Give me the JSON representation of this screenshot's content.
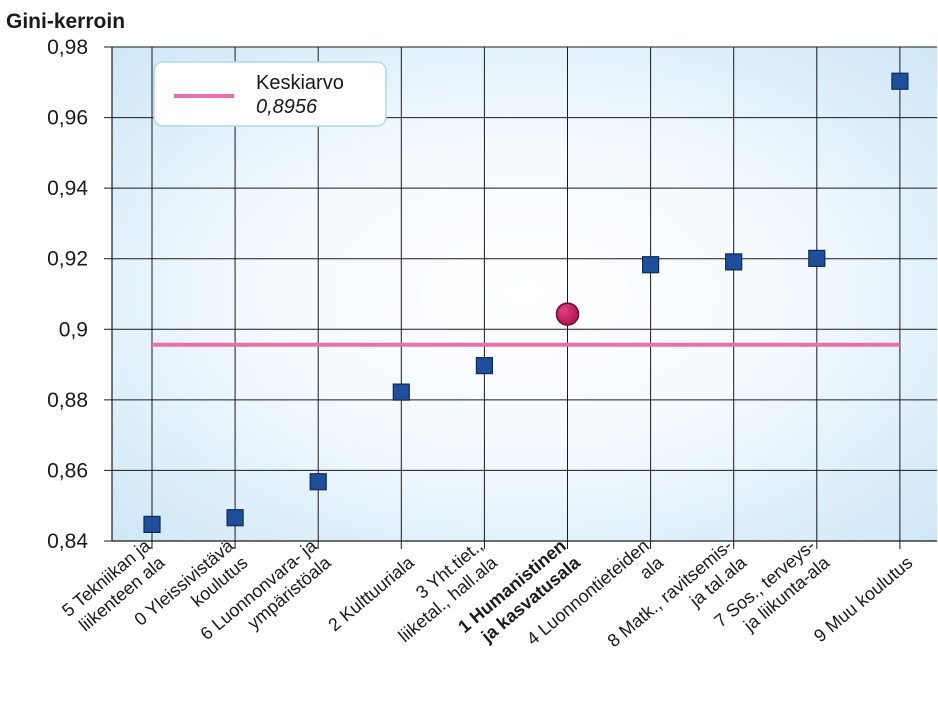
{
  "chart_data": {
    "type": "scatter",
    "title": "Gini-kerroin",
    "ylim": [
      0.84,
      0.98
    ],
    "y_ticks": [
      "0,84",
      "0,86",
      "0,88",
      "0,9",
      "0,92",
      "0,94",
      "0,96",
      "0,98"
    ],
    "y_tick_values": [
      0.84,
      0.86,
      0.88,
      0.9,
      0.92,
      0.94,
      0.96,
      0.98
    ],
    "grid": true,
    "legend_position": "top-left",
    "categories": [
      {
        "lines": [
          "5 Tekniikan ja",
          "liikenteen ala"
        ],
        "bold": false
      },
      {
        "lines": [
          "0 Yleissivistävä",
          "koulutus"
        ],
        "bold": false
      },
      {
        "lines": [
          "6 Luonnonvara- ja",
          "ympäristöala"
        ],
        "bold": false
      },
      {
        "lines": [
          "2 Kulttuuriala"
        ],
        "bold": false
      },
      {
        "lines": [
          "3 Yht.tiet.,",
          "liiketal., hall.ala"
        ],
        "bold": false
      },
      {
        "lines": [
          "1 Humanistinen",
          "ja kasvatusala"
        ],
        "bold": true
      },
      {
        "lines": [
          "4 Luonnontieteiden",
          "ala"
        ],
        "bold": false
      },
      {
        "lines": [
          "8 Matk., ravitsemis-",
          "ja tal.ala"
        ],
        "bold": false
      },
      {
        "lines": [
          "7 Sos., terveys-",
          "ja liikunta-ala"
        ],
        "bold": false
      },
      {
        "lines": [
          "9 Muu koulutus"
        ],
        "bold": false
      }
    ],
    "values": [
      0.8447,
      0.8466,
      0.8568,
      0.8822,
      0.8897,
      0.9043,
      0.9183,
      0.9191,
      0.9201,
      0.9703
    ],
    "highlight_index": 5,
    "mean": {
      "label": "Keskiarvo",
      "value_text": "0,8956",
      "value": 0.8956
    },
    "colors": {
      "marker": "#1f4e9a",
      "marker_stroke": "#0d2a5c",
      "highlight": "#c0185a",
      "highlight_stroke": "#6e0a33",
      "mean_line": "#ea6fa8",
      "grid": "#1a1a1a",
      "bg_center": "#ffffff",
      "bg_edge": "#cfe7f6",
      "legend_border": "#a9dcef"
    }
  }
}
